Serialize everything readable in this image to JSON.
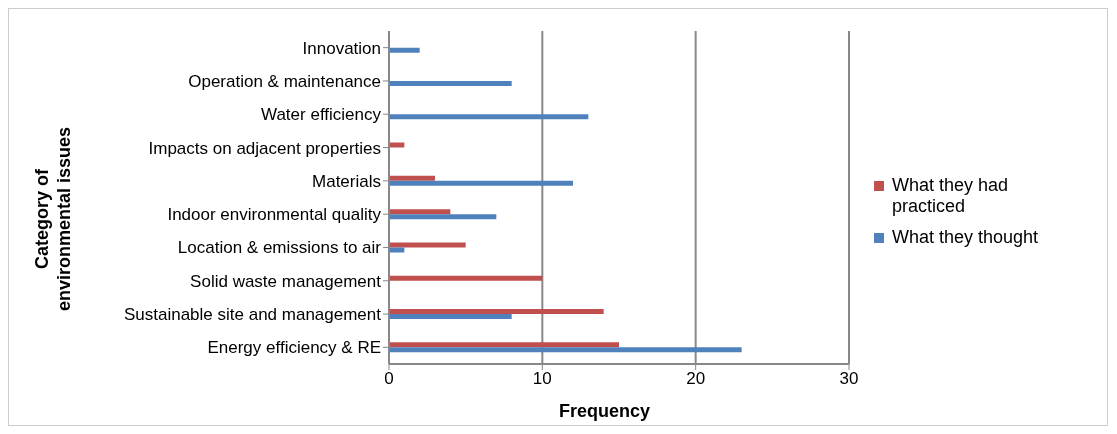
{
  "chart_data": {
    "type": "bar",
    "orientation": "horizontal",
    "xlabel": "Frequency",
    "ylabel": "Category of environmental issues",
    "categories": [
      "Innovation",
      "Operation & maintenance",
      "Water efficiency",
      "Impacts on adjacent properties",
      "Materials",
      "Indoor environmental quality",
      "Location & emissions to air",
      "Solid waste management",
      "Sustainable site and management",
      "Energy efficiency & RE"
    ],
    "series": [
      {
        "name": "What they had practiced",
        "color": "#c0504d",
        "values": [
          null,
          null,
          null,
          1,
          3,
          4,
          5,
          10,
          14,
          15
        ]
      },
      {
        "name": "What they thought",
        "color": "#4f81bd",
        "values": [
          2,
          8,
          13,
          null,
          12,
          7,
          1,
          null,
          8,
          23
        ]
      }
    ],
    "xlim": [
      0,
      30
    ],
    "xticks": [
      0,
      10,
      20,
      30
    ],
    "grid": "x",
    "legend": "right"
  }
}
